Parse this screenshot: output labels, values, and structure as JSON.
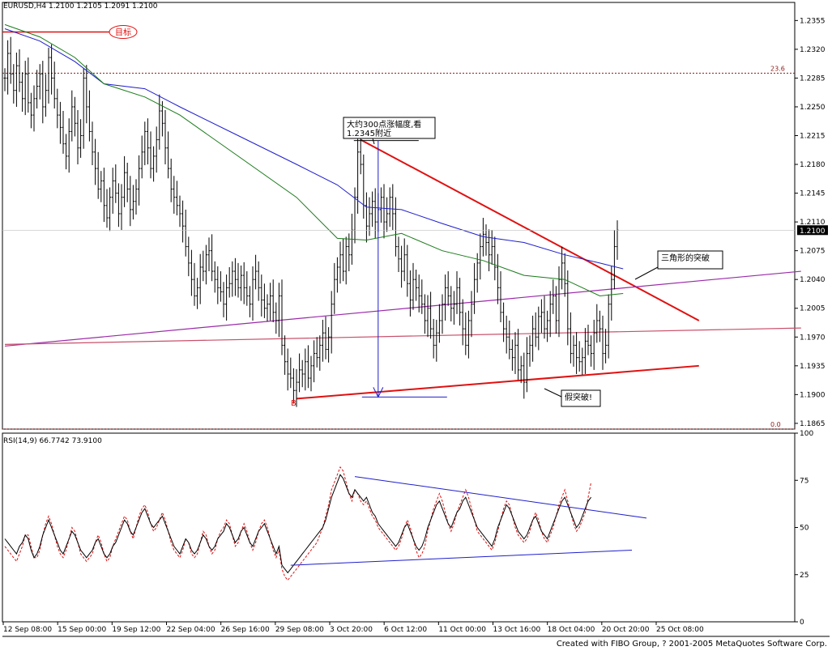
{
  "header": {
    "main_title": "EURUSD,H4  1.2100 1.2105 1.2091 1.2100",
    "rsi_title": "RSI(14,9)  66.7742  73.9100"
  },
  "credit": "Created with FIBO Group, ? 2001-2005 MetaQuotes Software Corp.",
  "colors": {
    "price_bars": "#000000",
    "ma_blue": "#1e1ecc",
    "ma_green": "#1a7a1a",
    "trendline_red": "#e01010",
    "trendline_purple": "#9a2aa8",
    "trendline_pink": "#c8506a",
    "fib_level": "#8b1a1a",
    "rsi": "#000000",
    "rsi_signal": "#e01010",
    "rsi_trend": "#1e1ecc",
    "current_price_bg": "#000000"
  },
  "annotations": {
    "target": "目标",
    "amplitude_line1": "大约300点涨幅度,看",
    "amplitude_line2": "1.2345附近",
    "breakout": "三角形的突破",
    "false_break": "假突破!",
    "point_b": "B"
  },
  "chart_data": [
    {
      "type": "line",
      "title": "EURUSD,H4  1.2100 1.2105 1.2091 1.2100",
      "ylim": [
        1.1858,
        1.2377
      ],
      "y_ticks": [
        "1.2355",
        "1.2320",
        "1.2285",
        "1.2250",
        "1.2215",
        "1.2180",
        "1.2145",
        "1.2110",
        "1.2075",
        "1.2040",
        "1.2005",
        "1.1970",
        "1.1935",
        "1.1900",
        "1.1865"
      ],
      "current_price": "1.2100",
      "x_ticks": [
        "12 Sep 08:00",
        "15 Sep 00:00",
        "19 Sep 12:00",
        "22 Sep 04:00",
        "26 Sep 16:00",
        "29 Sep 08:00",
        "3 Oct 20:00",
        "6 Oct 12:00",
        "11 Oct 00:00",
        "13 Oct 16:00",
        "18 Oct 04:00",
        "20 Oct 20:00",
        "25 Oct 08:00"
      ],
      "fib_levels": [
        {
          "label": "23.6",
          "price": 1.2291
        },
        {
          "label": "0.0",
          "price": 1.1858
        }
      ],
      "target_price": 1.2341,
      "close_series": [
        1.2285,
        1.2315,
        1.229,
        1.227,
        1.23,
        1.228,
        1.226,
        1.229,
        1.2255,
        1.224,
        1.226,
        1.2275,
        1.229,
        1.225,
        1.227,
        1.231,
        1.2285,
        1.226,
        1.224,
        1.2225,
        1.2205,
        1.219,
        1.222,
        1.225,
        1.223,
        1.22,
        1.2215,
        1.2285,
        1.225,
        1.222,
        1.2195,
        1.2175,
        1.215,
        1.216,
        1.213,
        1.2115,
        1.214,
        1.216,
        1.2145,
        1.212,
        1.214,
        1.217,
        1.215,
        1.2125,
        1.2135,
        1.215,
        1.2175,
        1.2195,
        1.222,
        1.22,
        1.2175,
        1.219,
        1.221,
        1.2245,
        1.223,
        1.22,
        1.2175,
        1.215,
        1.214,
        1.213,
        1.212,
        1.2105,
        1.208,
        1.206,
        1.204,
        1.202,
        1.203,
        1.2055,
        1.205,
        1.207,
        1.2075,
        1.205,
        1.204,
        1.203,
        1.2025,
        1.201,
        1.203,
        1.2035,
        1.205,
        1.204,
        1.203,
        1.2045,
        1.203,
        1.202,
        1.201,
        1.204,
        1.205,
        1.203,
        1.2015,
        1.2005,
        1.201,
        1.202,
        1.2,
        1.199,
        1.202,
        1.196,
        1.194,
        1.1925,
        1.192,
        1.1905,
        1.1915,
        1.193,
        1.1925,
        1.194,
        1.192,
        1.1935,
        1.195,
        1.1945,
        1.196,
        1.1975,
        1.1955,
        1.197,
        1.201,
        1.204,
        1.2055,
        1.207,
        1.205,
        1.208,
        1.207,
        1.21,
        1.214,
        1.2195,
        1.218,
        1.213,
        1.2105,
        1.212,
        1.2135,
        1.211,
        1.2125,
        1.214,
        1.211,
        1.212,
        1.214,
        1.212,
        1.208,
        1.2065,
        1.205,
        1.207,
        1.2035,
        1.2015,
        1.204,
        1.203,
        1.202,
        1.201,
        1.199,
        1.2005,
        1.198,
        1.196,
        1.1975,
        1.199,
        1.201,
        1.203,
        1.202,
        1.2005,
        1.201,
        1.203,
        1.2,
        1.198,
        1.196,
        1.199,
        1.201,
        1.204,
        1.206,
        1.208,
        1.2095,
        1.2085,
        1.207,
        1.208,
        1.2055,
        1.203,
        1.2,
        1.198,
        1.197,
        1.1955,
        1.1945,
        1.196,
        1.193,
        1.1935,
        1.1915,
        1.195,
        1.196,
        1.198,
        1.197,
        1.1995,
        1.2,
        1.198,
        1.199,
        1.201,
        1.202,
        1.199,
        1.204,
        1.206,
        1.2035,
        1.198,
        1.195,
        1.196,
        1.1945,
        1.194,
        1.1945,
        1.1965,
        1.196,
        1.195,
        1.1975,
        1.199,
        1.198,
        1.195,
        1.196,
        1.201,
        1.204,
        1.208,
        1.21
      ],
      "ma_blue": [
        [
          0,
          1.2345
        ],
        [
          12,
          1.233
        ],
        [
          24,
          1.2305
        ],
        [
          34,
          1.2278
        ],
        [
          48,
          1.2272
        ],
        [
          60,
          1.225
        ],
        [
          80,
          1.2215
        ],
        [
          100,
          1.218
        ],
        [
          114,
          1.2155
        ],
        [
          124,
          1.2128
        ],
        [
          136,
          1.2125
        ],
        [
          150,
          1.2108
        ],
        [
          164,
          1.2092
        ],
        [
          178,
          1.2085
        ],
        [
          192,
          1.207
        ],
        [
          204,
          1.206
        ],
        [
          212,
          1.2053
        ]
      ],
      "ma_green": [
        [
          0,
          1.235
        ],
        [
          12,
          1.2335
        ],
        [
          24,
          1.231
        ],
        [
          34,
          1.2278
        ],
        [
          48,
          1.2262
        ],
        [
          60,
          1.224
        ],
        [
          80,
          1.219
        ],
        [
          100,
          1.214
        ],
        [
          114,
          1.209
        ],
        [
          124,
          1.2088
        ],
        [
          136,
          1.2096
        ],
        [
          150,
          1.2075
        ],
        [
          164,
          1.2063
        ],
        [
          178,
          1.2045
        ],
        [
          192,
          1.204
        ],
        [
          204,
          1.202
        ],
        [
          212,
          1.2023
        ]
      ],
      "trendlines": [
        {
          "name": "triangle-upper",
          "color": "#e01010",
          "from": [
            122,
            1.221
          ],
          "to": [
            238,
            1.199
          ]
        },
        {
          "name": "triangle-lower",
          "color": "#e01010",
          "from": [
            100,
            1.1895
          ],
          "to": [
            238,
            1.1935
          ]
        },
        {
          "name": "purple-support",
          "color": "#9a2aa8",
          "from": [
            0,
            1.1959
          ],
          "to": [
            273,
            1.205
          ]
        },
        {
          "name": "pink-support",
          "color": "#c8506a",
          "from": [
            0,
            1.1961
          ],
          "to": [
            273,
            1.1981
          ]
        }
      ]
    },
    {
      "type": "line",
      "title": "RSI(14,9)  66.7742  73.9100",
      "ylim": [
        0,
        100
      ],
      "y_ticks": [
        "100",
        "75",
        "50",
        "25",
        "0"
      ],
      "rsi_series": [
        44,
        42,
        40,
        38,
        36,
        40,
        42,
        46,
        44,
        38,
        34,
        36,
        40,
        46,
        50,
        54,
        50,
        46,
        42,
        38,
        36,
        40,
        44,
        48,
        46,
        42,
        38,
        36,
        34,
        36,
        38,
        42,
        44,
        40,
        36,
        34,
        36,
        40,
        42,
        46,
        50,
        54,
        52,
        48,
        46,
        50,
        54,
        58,
        60,
        56,
        52,
        50,
        52,
        54,
        56,
        52,
        48,
        44,
        40,
        38,
        36,
        40,
        44,
        42,
        38,
        36,
        38,
        42,
        46,
        44,
        40,
        38,
        40,
        44,
        46,
        48,
        52,
        50,
        46,
        42,
        44,
        48,
        50,
        46,
        42,
        40,
        44,
        48,
        50,
        52,
        48,
        44,
        40,
        36,
        40,
        30,
        28,
        26,
        28,
        30,
        32,
        34,
        36,
        38,
        40,
        42,
        44,
        46,
        48,
        50,
        54,
        60,
        66,
        70,
        74,
        78,
        76,
        72,
        68,
        66,
        70,
        68,
        66,
        64,
        66,
        62,
        58,
        56,
        52,
        50,
        48,
        46,
        44,
        42,
        40,
        42,
        46,
        50,
        52,
        48,
        44,
        40,
        38,
        40,
        44,
        50,
        54,
        58,
        62,
        64,
        60,
        56,
        52,
        50,
        54,
        58,
        60,
        64,
        66,
        62,
        58,
        54,
        50,
        48,
        46,
        44,
        42,
        40,
        44,
        50,
        54,
        58,
        62,
        60,
        56,
        52,
        48,
        46,
        44,
        46,
        50,
        54,
        56,
        52,
        48,
        46,
        44,
        48,
        52,
        56,
        60,
        64,
        66,
        62,
        58,
        54,
        50,
        52,
        56,
        60,
        64,
        66
      ],
      "rsi_signal_series": [
        40,
        38,
        36,
        34,
        32,
        36,
        40,
        46,
        46,
        40,
        34,
        34,
        38,
        46,
        52,
        56,
        52,
        46,
        40,
        36,
        34,
        38,
        44,
        50,
        48,
        42,
        36,
        34,
        32,
        34,
        36,
        42,
        46,
        42,
        36,
        32,
        34,
        40,
        44,
        48,
        52,
        56,
        54,
        48,
        44,
        50,
        56,
        60,
        62,
        58,
        52,
        48,
        50,
        54,
        58,
        54,
        48,
        42,
        38,
        36,
        34,
        38,
        44,
        42,
        36,
        34,
        36,
        42,
        48,
        46,
        40,
        36,
        38,
        44,
        48,
        50,
        54,
        52,
        46,
        40,
        42,
        48,
        52,
        48,
        42,
        38,
        42,
        48,
        52,
        54,
        50,
        44,
        38,
        34,
        38,
        28,
        24,
        22,
        24,
        26,
        28,
        30,
        32,
        34,
        36,
        38,
        40,
        42,
        46,
        50,
        56,
        62,
        70,
        74,
        78,
        82,
        80,
        74,
        68,
        64,
        70,
        68,
        64,
        62,
        64,
        60,
        56,
        54,
        50,
        48,
        46,
        44,
        42,
        40,
        38,
        40,
        44,
        50,
        54,
        50,
        44,
        38,
        34,
        36,
        40,
        48,
        54,
        60,
        64,
        68,
        64,
        58,
        52,
        48,
        52,
        58,
        62,
        66,
        70,
        66,
        60,
        54,
        48,
        46,
        44,
        42,
        40,
        38,
        42,
        48,
        54,
        60,
        64,
        62,
        56,
        50,
        46,
        44,
        42,
        44,
        48,
        54,
        58,
        54,
        48,
        44,
        42,
        46,
        50,
        56,
        62,
        66,
        70,
        64,
        58,
        52,
        48,
        50,
        54,
        58,
        66,
        74
      ],
      "trendlines": [
        {
          "name": "rsi-upper",
          "from": [
            120,
            77
          ],
          "to": [
            220,
            55
          ]
        },
        {
          "name": "rsi-lower",
          "from": [
            98,
            30
          ],
          "to": [
            215,
            38
          ]
        }
      ]
    }
  ]
}
